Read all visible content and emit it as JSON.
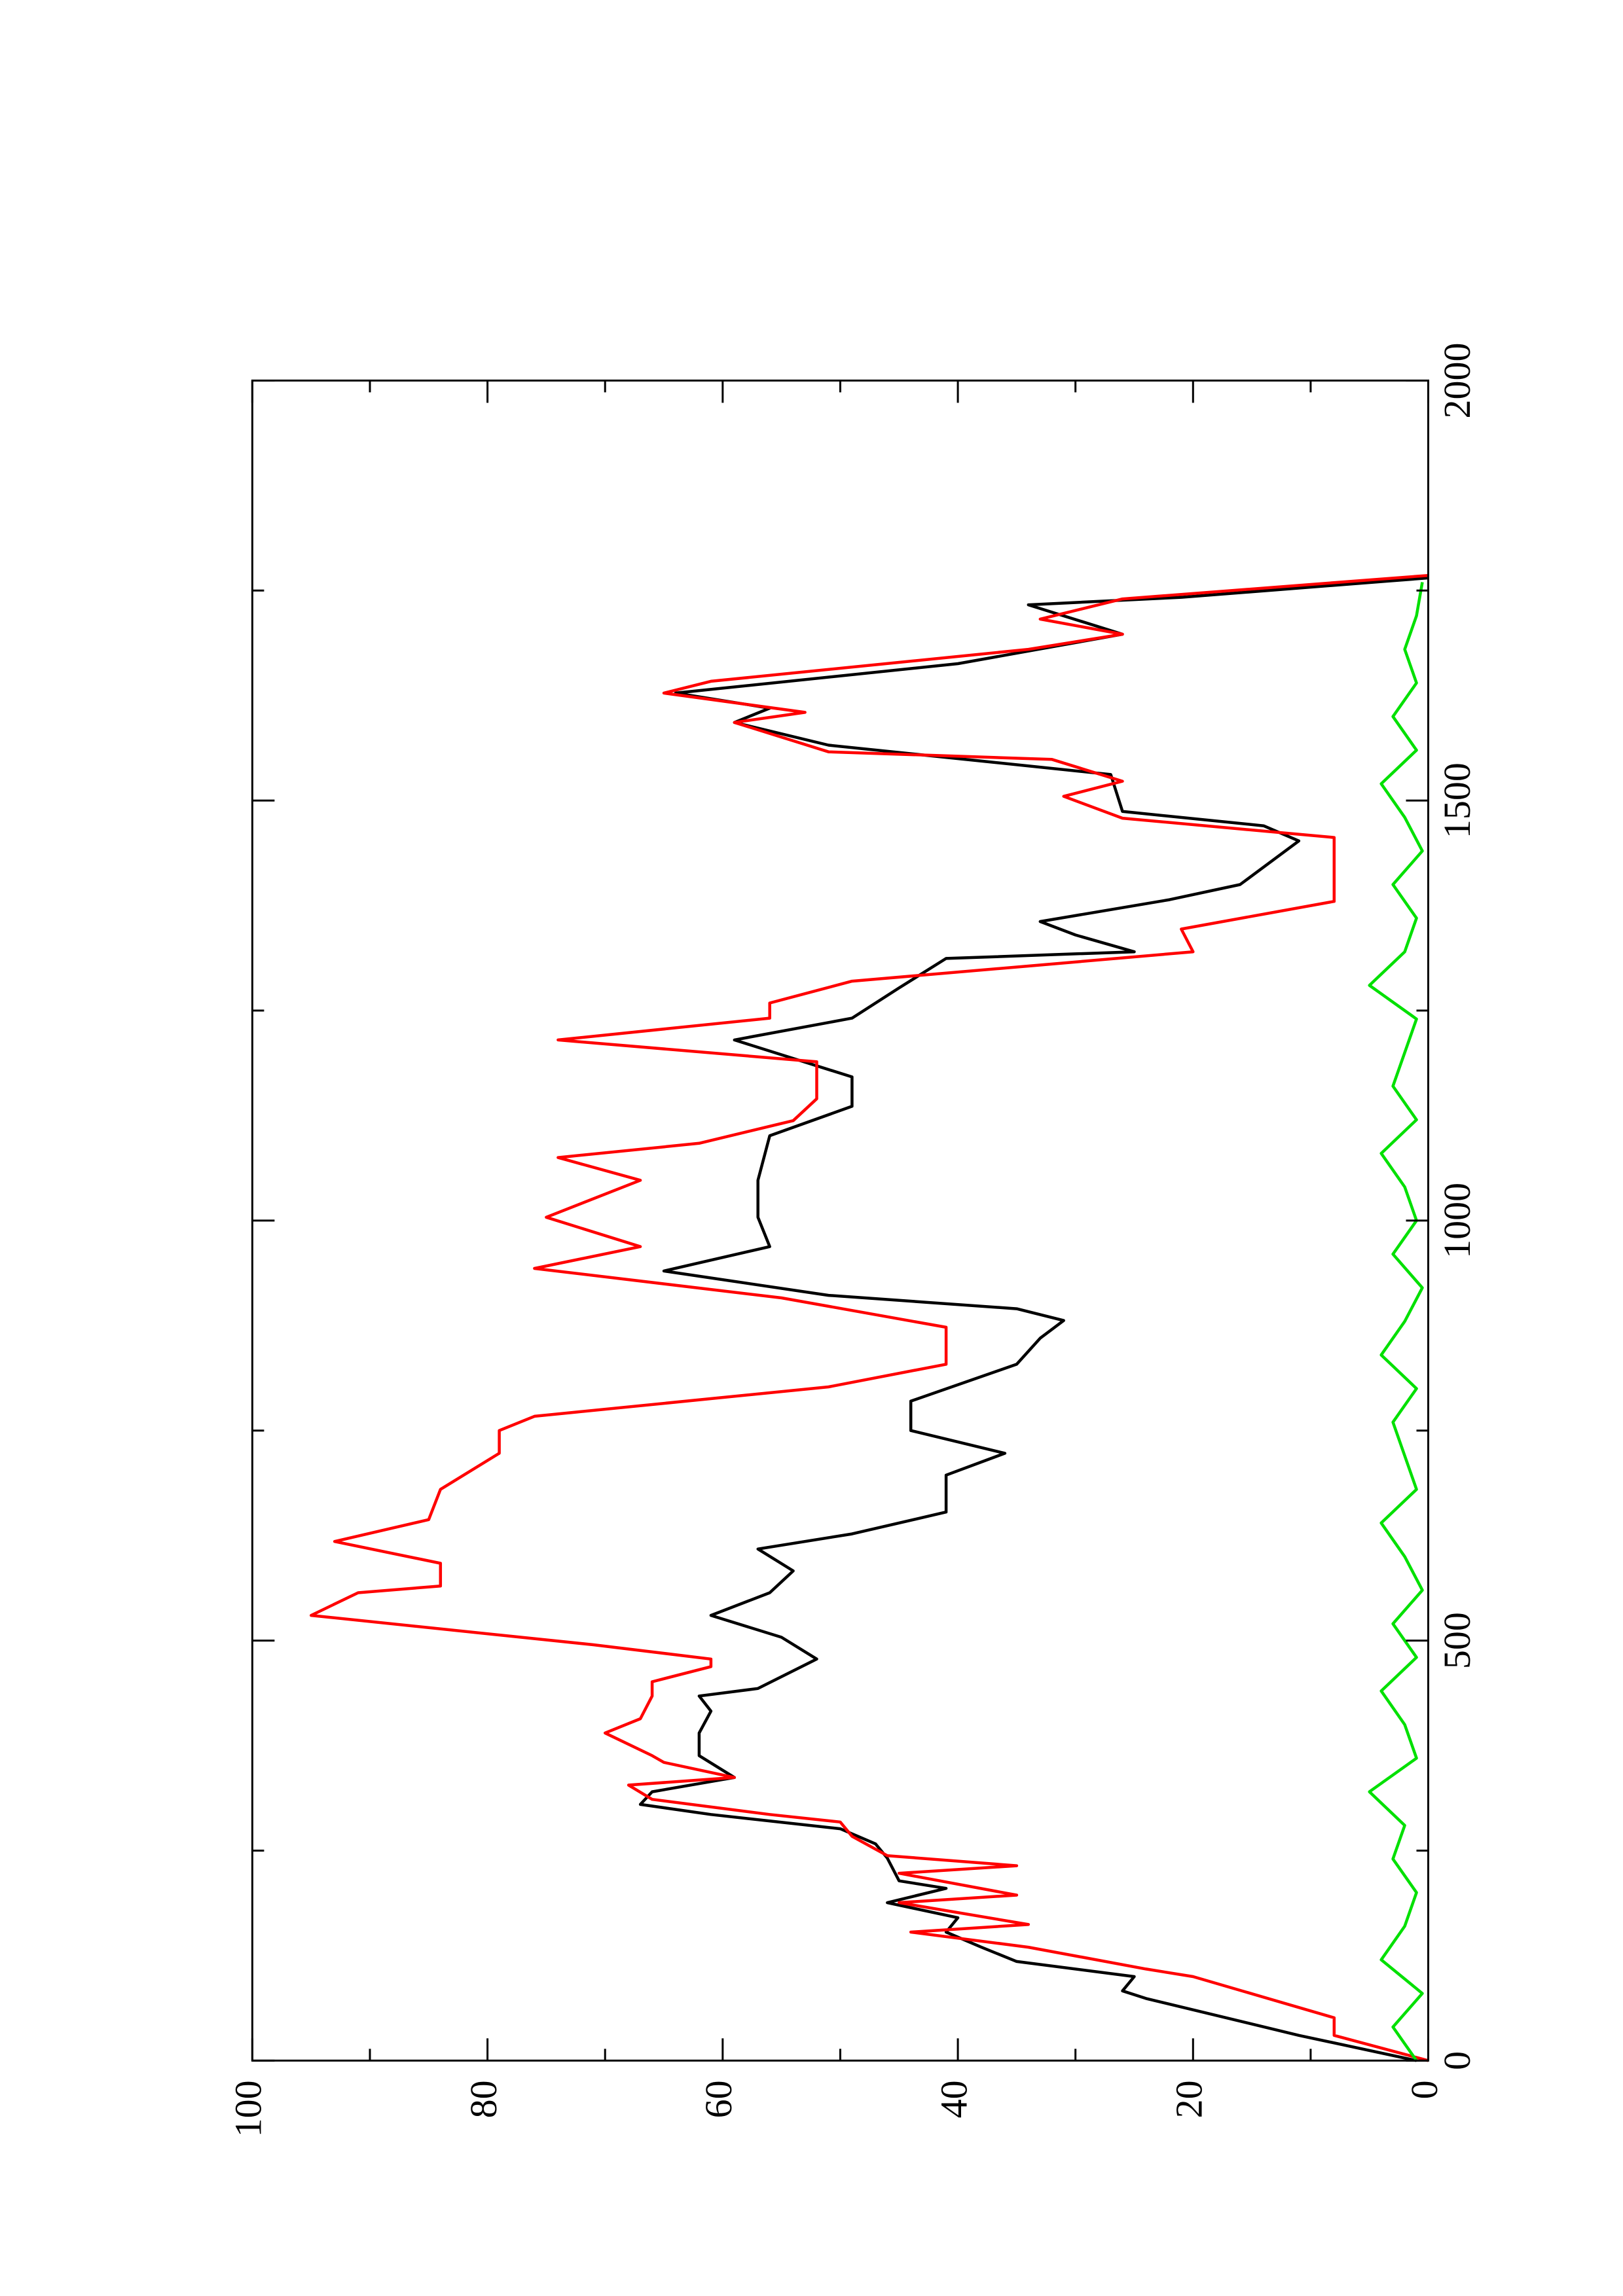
{
  "chart_data": {
    "type": "line",
    "orientation": "rotated",
    "xlim": [
      0,
      2000
    ],
    "ylim": [
      0,
      100
    ],
    "xticks": [
      0,
      500,
      1000,
      1500,
      2000
    ],
    "yticks": [
      0,
      20,
      40,
      60,
      80,
      100
    ],
    "xticks_minor": [
      250,
      750,
      1250,
      1750
    ],
    "yticks_minor": [
      10,
      30,
      50,
      70,
      90
    ],
    "series": [
      {
        "color": "#000000",
        "x": [
          0,
          30,
          74,
          83,
          100,
          118,
          135,
          153,
          170,
          188,
          205,
          214,
          241,
          258,
          276,
          293,
          305,
          320,
          337,
          363,
          390,
          416,
          434,
          443,
          478,
          504,
          530,
          557,
          583,
          609,
          627,
          653,
          697,
          723,
          750,
          785,
          829,
          860,
          881,
          895,
          911,
          940,
          969,
          1004,
          1048,
          1101,
          1136,
          1171,
          1215,
          1241,
          1277,
          1312,
          1320,
          1340,
          1356,
          1382,
          1400,
          1452,
          1470,
          1487,
          1531,
          1566,
          1593,
          1610,
          1628,
          1663,
          1698,
          1733,
          1742,
          1765
        ],
        "values": [
          1,
          11,
          24,
          26,
          25,
          35,
          38,
          41,
          40,
          46,
          41,
          45,
          46,
          47,
          50,
          61,
          67,
          66,
          59,
          62,
          62,
          61,
          62,
          57,
          52,
          55,
          61,
          56,
          54,
          57,
          49,
          41,
          41,
          36,
          44,
          44,
          35,
          33,
          31,
          35,
          51,
          65,
          56,
          57,
          57,
          56,
          49,
          49,
          59,
          49,
          45,
          41,
          25,
          30,
          33,
          22,
          16,
          11,
          14,
          26,
          27,
          51,
          59,
          56,
          64,
          40,
          26,
          34,
          21,
          0
        ]
      },
      {
        "color": "#ff0000",
        "x": [
          0,
          30,
          51,
          100,
          109,
          135,
          153,
          162,
          188,
          197,
          223,
          232,
          244,
          267,
          284,
          293,
          311,
          328,
          337,
          355,
          363,
          390,
          407,
          434,
          451,
          469,
          478,
          495,
          530,
          557,
          565,
          592,
          618,
          644,
          680,
          723,
          750,
          767,
          802,
          829,
          855,
          873,
          908,
          943,
          969,
          1004,
          1048,
          1075,
          1092,
          1119,
          1145,
          1162,
          1189,
          1215,
          1241,
          1259,
          1285,
          1303,
          1320,
          1347,
          1380,
          1456,
          1479,
          1505,
          1523,
          1549,
          1558,
          1593,
          1605,
          1628,
          1642,
          1680,
          1698,
          1716,
          1740,
          1768
        ],
        "values": [
          0,
          8,
          8,
          20,
          24,
          34,
          44,
          34,
          45,
          35,
          45,
          35,
          46,
          49,
          50,
          56,
          66,
          68,
          59,
          65,
          66,
          70,
          67,
          66,
          66,
          61,
          61,
          71,
          95,
          91,
          84,
          84,
          93,
          85,
          84,
          79,
          79,
          76,
          51,
          41,
          41,
          41,
          55,
          76,
          67,
          75,
          67,
          74,
          62,
          54,
          52,
          52,
          52,
          74,
          56,
          56,
          49,
          34,
          20,
          21,
          8,
          8,
          26,
          31,
          26,
          32,
          51,
          59,
          53,
          65,
          61,
          34,
          26,
          33,
          26,
          0
        ]
      },
      {
        "color": "#00e000",
        "x": [
          0,
          40,
          80,
          120,
          160,
          200,
          240,
          280,
          320,
          360,
          400,
          440,
          480,
          520,
          560,
          600,
          640,
          680,
          720,
          760,
          800,
          840,
          880,
          920,
          960,
          1000,
          1040,
          1080,
          1120,
          1160,
          1200,
          1240,
          1280,
          1320,
          1360,
          1400,
          1440,
          1480,
          1520,
          1560,
          1600,
          1640,
          1680,
          1720,
          1760
        ],
        "values": [
          1,
          3,
          0.5,
          4,
          2,
          1,
          3,
          2,
          5,
          1,
          2,
          4,
          1,
          3,
          0.5,
          2,
          4,
          1,
          2,
          3,
          1,
          4,
          2,
          0.5,
          3,
          1,
          2,
          4,
          1,
          3,
          2,
          1,
          5,
          2,
          1,
          3,
          0.5,
          2,
          4,
          1,
          3,
          1,
          2,
          1,
          0.5
        ]
      }
    ]
  }
}
